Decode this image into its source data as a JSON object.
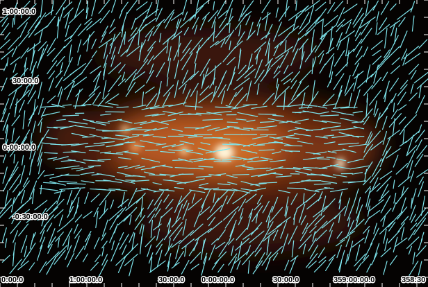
{
  "axes": {
    "y_labels": [
      "1:00:00.0",
      "30:00.0",
      "0:00:00.0",
      "-0:30:00.0"
    ],
    "x_labels": [
      "0:00.0",
      "1:00:00.0",
      "30:00.0",
      "0:00:00.0",
      "30:00.0",
      "359:00:00.0",
      "358:30"
    ]
  }
}
